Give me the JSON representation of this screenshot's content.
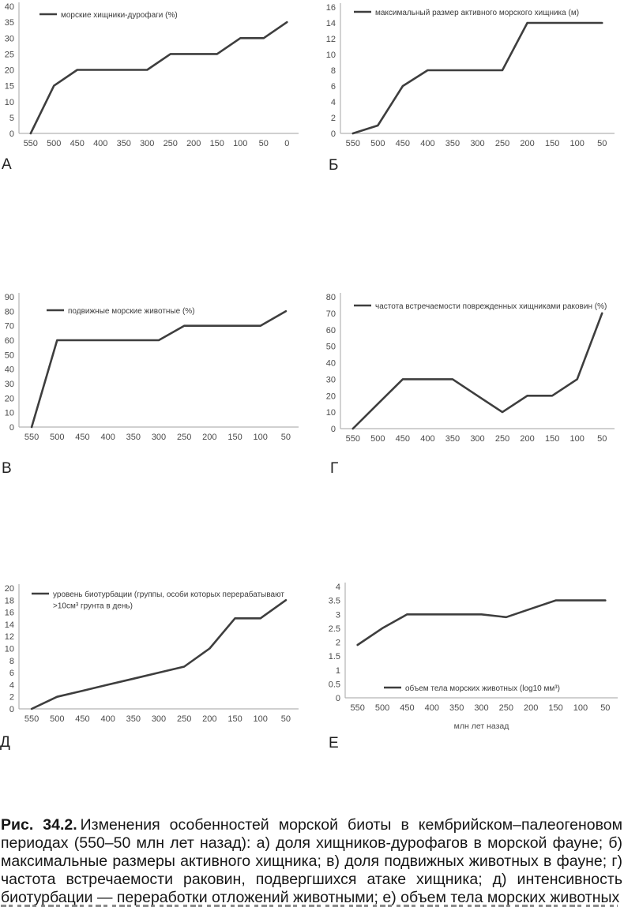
{
  "figure": {
    "caption_label": "Рис. 34.2.",
    "caption_text": "Изменения особенностей морской биоты в кембрийском–палеогеновом периодах (550–50 млн лет назад): а) доля хищников-дурофагов в морской фауне; б) максимальные размеры активного хищника; в) доля подвижных животных в фауне; г) частота встречаемости раковин, подвергшихся атаке хищника; д) интенсивность биотурбации — переработки отложений животными; е) объем тела морских животных"
  },
  "colors": {
    "line": "#3e3e3e",
    "axis": "#b3b3b3",
    "tick_text": "#4a4a4a",
    "legend_text": "#3a3a3a",
    "caption_text": "#161616"
  },
  "chart_data": [
    {
      "id": "a",
      "letter": "А",
      "type": "line",
      "legend": [
        "морские хищники-дурофаги (%)"
      ],
      "categories": [
        550,
        500,
        450,
        400,
        350,
        300,
        250,
        200,
        150,
        100,
        50,
        0
      ],
      "values": [
        0,
        15,
        20,
        20,
        20,
        20,
        25,
        25,
        25,
        30,
        30,
        35
      ],
      "ylim": [
        0,
        40
      ],
      "ystep": 5,
      "grid": false,
      "legend_pos": {
        "x": 50,
        "y": 18
      }
    },
    {
      "id": "b",
      "letter": "Б",
      "type": "line",
      "legend": [
        "максимальный размер активного морского хищника (м)"
      ],
      "categories": [
        550,
        500,
        450,
        400,
        350,
        300,
        250,
        200,
        150,
        100,
        50
      ],
      "values": [
        0,
        1,
        6,
        8,
        8,
        8,
        8,
        14,
        14,
        14,
        14
      ],
      "ylim": [
        0,
        16
      ],
      "ystep": 2,
      "grid": false,
      "legend_pos": {
        "x": 50,
        "y": 15
      }
    },
    {
      "id": "v",
      "letter": "В",
      "type": "line",
      "legend": [
        "подвижные морские животные (%)"
      ],
      "categories": [
        550,
        500,
        450,
        400,
        350,
        300,
        250,
        200,
        150,
        100,
        50
      ],
      "values": [
        0,
        60,
        60,
        60,
        60,
        60,
        70,
        70,
        70,
        70,
        80
      ],
      "ylim": [
        0,
        90
      ],
      "ystep": 10,
      "grid": false,
      "legend_pos": {
        "x": 59,
        "y": 25
      }
    },
    {
      "id": "g",
      "letter": "Г",
      "type": "line",
      "legend": [
        "частота встречаемости поврежденных хищниками раковин (%)"
      ],
      "categories": [
        550,
        500,
        450,
        400,
        350,
        300,
        250,
        200,
        150,
        100,
        50
      ],
      "values": [
        0,
        15,
        30,
        30,
        30,
        20,
        10,
        20,
        20,
        30,
        70
      ],
      "ylim": [
        0,
        80
      ],
      "ystep": 10,
      "grid": false,
      "legend_pos": {
        "x": 50,
        "y": 19
      }
    },
    {
      "id": "d",
      "letter": "Д",
      "type": "line",
      "legend": [
        "уровень биотурбации (группы, особи которых перерабатывают",
        ">10см³ грунта в день)"
      ],
      "categories": [
        550,
        500,
        450,
        400,
        350,
        300,
        250,
        200,
        150,
        100,
        50
      ],
      "values": [
        0,
        2,
        3,
        4,
        5,
        6,
        7,
        10,
        15,
        15,
        18
      ],
      "ylim": [
        0,
        20
      ],
      "ystep": 2,
      "grid": false,
      "legend_pos": {
        "x": 40,
        "y": 20
      }
    },
    {
      "id": "e",
      "letter": "Е",
      "type": "line",
      "legend": [
        "объем тела морских животных (log10 мм³)"
      ],
      "categories": [
        550,
        500,
        450,
        400,
        350,
        300,
        250,
        200,
        150,
        100,
        50
      ],
      "values": [
        1.9,
        2.5,
        3,
        3,
        3,
        3,
        2.9,
        3.2,
        3.5,
        3.5,
        3.5
      ],
      "ylim": [
        0,
        4
      ],
      "ystep": 0.5,
      "xlabel": "млн лет назад",
      "grid": false,
      "legend_pos": {
        "x": 88,
        "y": 139
      }
    }
  ]
}
